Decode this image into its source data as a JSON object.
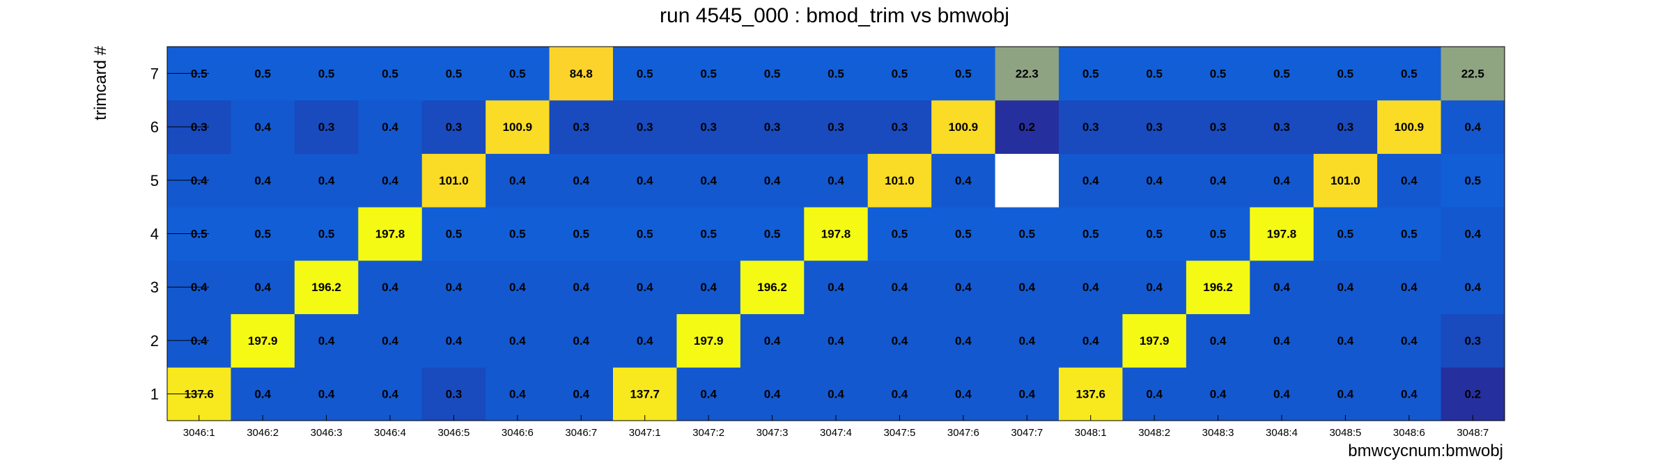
{
  "chart_data": {
    "type": "heatmap",
    "title": "run 4545_000 : bmod_trim vs bmwobj",
    "xlabel": "bmwcycnum:bmwobj",
    "ylabel": "trimcard #",
    "x_categories": [
      "3046:1",
      "3046:2",
      "3046:3",
      "3046:4",
      "3046:5",
      "3046:6",
      "3046:7",
      "3047:1",
      "3047:2",
      "3047:3",
      "3047:4",
      "3047:5",
      "3047:6",
      "3047:7",
      "3048:1",
      "3048:2",
      "3048:3",
      "3048:4",
      "3048:5",
      "3048:6",
      "3048:7"
    ],
    "y_categories": [
      "1",
      "2",
      "3",
      "4",
      "5",
      "6",
      "7"
    ],
    "values": [
      [
        "137.6",
        "0.4",
        "0.4",
        "0.4",
        "0.3",
        "0.4",
        "0.4",
        "137.7",
        "0.4",
        "0.4",
        "0.4",
        "0.4",
        "0.4",
        "0.4",
        "137.6",
        "0.4",
        "0.4",
        "0.4",
        "0.4",
        "0.4",
        "0.2"
      ],
      [
        "0.4",
        "197.9",
        "0.4",
        "0.4",
        "0.4",
        "0.4",
        "0.4",
        "0.4",
        "197.9",
        "0.4",
        "0.4",
        "0.4",
        "0.4",
        "0.4",
        "0.4",
        "197.9",
        "0.4",
        "0.4",
        "0.4",
        "0.4",
        "0.3"
      ],
      [
        "0.4",
        "0.4",
        "196.2",
        "0.4",
        "0.4",
        "0.4",
        "0.4",
        "0.4",
        "0.4",
        "196.2",
        "0.4",
        "0.4",
        "0.4",
        "0.4",
        "0.4",
        "0.4",
        "196.2",
        "0.4",
        "0.4",
        "0.4",
        "0.4"
      ],
      [
        "0.5",
        "0.5",
        "0.5",
        "197.8",
        "0.5",
        "0.5",
        "0.5",
        "0.5",
        "0.5",
        "0.5",
        "197.8",
        "0.5",
        "0.5",
        "0.5",
        "0.5",
        "0.5",
        "0.5",
        "197.8",
        "0.5",
        "0.5",
        "0.4"
      ],
      [
        "0.4",
        "0.4",
        "0.4",
        "0.4",
        "101.0",
        "0.4",
        "0.4",
        "0.4",
        "0.4",
        "0.4",
        "0.4",
        "101.0",
        "0.4",
        null,
        "0.4",
        "0.4",
        "0.4",
        "0.4",
        "101.0",
        "0.4",
        "0.5"
      ],
      [
        "0.3",
        "0.4",
        "0.3",
        "0.4",
        "0.3",
        "100.9",
        "0.3",
        "0.3",
        "0.3",
        "0.3",
        "0.3",
        "0.3",
        "100.9",
        "0.2",
        "0.3",
        "0.3",
        "0.3",
        "0.3",
        "0.3",
        "100.9",
        "0.4"
      ],
      [
        "0.5",
        "0.5",
        "0.5",
        "0.5",
        "0.5",
        "0.5",
        "84.8",
        "0.5",
        "0.5",
        "0.5",
        "0.5",
        "0.5",
        "0.5",
        "22.3",
        "0.5",
        "0.5",
        "0.5",
        "0.5",
        "0.5",
        "0.5",
        "22.5"
      ]
    ],
    "colormap": "parula",
    "grid": false
  }
}
